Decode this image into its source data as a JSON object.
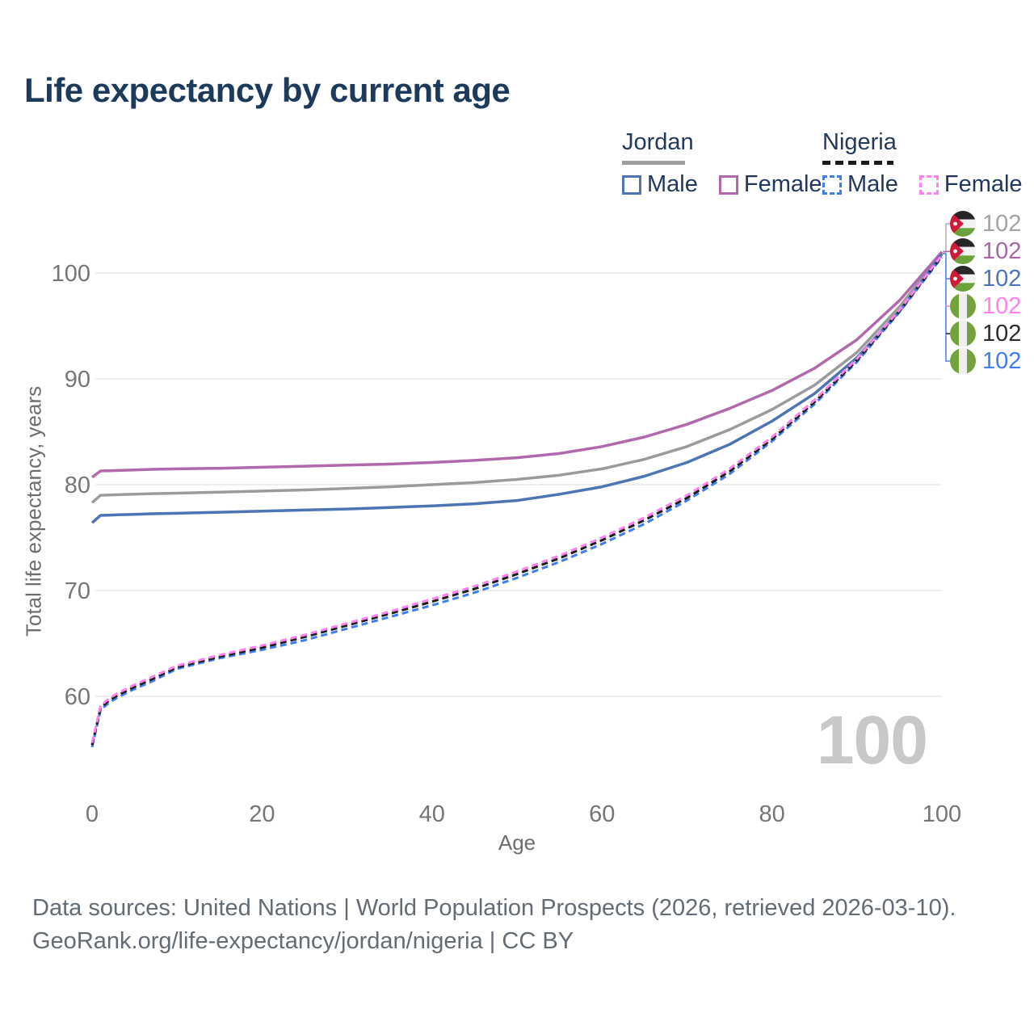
{
  "title": "Life expectancy by current age",
  "legend": {
    "jordan": {
      "country": "Jordan",
      "line_style": "solid",
      "underline_color": "#9e9e9e",
      "male_label": "Male",
      "female_label": "Female",
      "male_color": "#4d74b5",
      "female_color": "#b168ac"
    },
    "nigeria": {
      "country": "Nigeria",
      "line_style": "dashed",
      "underline_color": "#1a1a1a",
      "male_label": "Male",
      "female_label": "Female",
      "male_color": "#3d7ef2",
      "female_color": "#ff80ee"
    }
  },
  "chart_data": {
    "type": "line",
    "title": "Life expectancy by current age",
    "xlabel": "Age",
    "ylabel": "Total life expectancy, years",
    "x_ticks": [
      0,
      20,
      40,
      60,
      80,
      100
    ],
    "y_ticks": [
      60,
      70,
      80,
      90,
      100
    ],
    "xlim": [
      0,
      100
    ],
    "ylim": [
      54,
      103
    ],
    "grid": "horizontal",
    "legend_position": "top-right",
    "ages": [
      0,
      1,
      2,
      3,
      5,
      7,
      10,
      15,
      20,
      25,
      30,
      35,
      40,
      45,
      50,
      55,
      60,
      65,
      70,
      75,
      80,
      85,
      90,
      95,
      100
    ],
    "series": [
      {
        "name": "Jordan Total",
        "country": "Jordan",
        "sex": "Total",
        "style": "solid",
        "color": "#9b9b9b",
        "end_value": 102,
        "values": [
          78.3,
          79.0,
          79.02,
          79.05,
          79.1,
          79.15,
          79.2,
          79.3,
          79.4,
          79.5,
          79.65,
          79.8,
          80.0,
          80.2,
          80.5,
          80.9,
          81.5,
          82.4,
          83.6,
          85.2,
          87.1,
          89.4,
          92.5,
          96.8,
          101.9
        ]
      },
      {
        "name": "Jordan Female",
        "country": "Jordan",
        "sex": "Female",
        "style": "solid",
        "color": "#b168ac",
        "end_value": 102,
        "values": [
          80.7,
          81.3,
          81.32,
          81.34,
          81.4,
          81.45,
          81.5,
          81.55,
          81.65,
          81.75,
          81.85,
          81.95,
          82.1,
          82.3,
          82.55,
          82.95,
          83.6,
          84.5,
          85.7,
          87.2,
          88.9,
          91.0,
          93.7,
          97.4,
          102.0
        ]
      },
      {
        "name": "Jordan Male",
        "country": "Jordan",
        "sex": "Male",
        "style": "solid",
        "color": "#4d74b5",
        "end_value": 102,
        "values": [
          76.4,
          77.1,
          77.12,
          77.15,
          77.2,
          77.25,
          77.3,
          77.4,
          77.5,
          77.6,
          77.7,
          77.85,
          78.0,
          78.2,
          78.5,
          79.1,
          79.8,
          80.8,
          82.1,
          83.8,
          86.0,
          88.6,
          92.0,
          96.4,
          101.8
        ]
      },
      {
        "name": "Nigeria Male",
        "country": "Nigeria",
        "sex": "Male",
        "style": "dashed",
        "color": "#3d7ef2",
        "end_value": 102,
        "values": [
          55.2,
          58.7,
          59.4,
          59.9,
          60.7,
          61.4,
          62.6,
          63.6,
          64.4,
          65.3,
          66.4,
          67.5,
          68.6,
          69.8,
          71.2,
          72.7,
          74.4,
          76.3,
          78.5,
          81.0,
          84.1,
          87.6,
          91.6,
          96.3,
          101.5
        ]
      },
      {
        "name": "Nigeria Total",
        "country": "Nigeria",
        "sex": "Total",
        "style": "dashed",
        "color": "#1c1c1c",
        "end_value": 102,
        "values": [
          55.4,
          58.9,
          59.6,
          60.1,
          60.9,
          61.6,
          62.75,
          63.75,
          64.6,
          65.6,
          66.7,
          67.8,
          68.95,
          70.15,
          71.55,
          73.05,
          74.75,
          76.65,
          78.75,
          81.25,
          84.3,
          87.8,
          91.75,
          96.4,
          101.6
        ]
      },
      {
        "name": "Nigeria Female",
        "country": "Nigeria",
        "sex": "Female",
        "style": "dashed",
        "color": "#ff80ee",
        "end_value": 102,
        "values": [
          55.6,
          59.1,
          59.8,
          60.3,
          61.1,
          61.8,
          62.9,
          63.9,
          64.8,
          65.8,
          66.9,
          68.0,
          69.2,
          70.4,
          71.8,
          73.3,
          75.0,
          76.9,
          79.0,
          81.5,
          84.5,
          88.0,
          91.9,
          96.5,
          101.7
        ]
      }
    ]
  },
  "right_labels": {
    "rows": [
      {
        "icon": "jordan-flag-icon",
        "flag": "jordan",
        "value": "102",
        "color": "#a2a2a2"
      },
      {
        "icon": "jordan-flag-icon",
        "flag": "jordan",
        "value": "102",
        "color": "#a965a5"
      },
      {
        "icon": "jordan-flag-icon",
        "flag": "jordan",
        "value": "102",
        "color": "#4d74b5"
      },
      {
        "icon": "nigeria-flag-icon",
        "flag": "nigeria",
        "value": "102",
        "color": "#ff80ee"
      },
      {
        "icon": "nigeria-flag-icon",
        "flag": "nigeria",
        "value": "102",
        "color": "#2b2b2b"
      },
      {
        "icon": "nigeria-flag-icon",
        "flag": "nigeria",
        "value": "102",
        "color": "#3d7ef2"
      }
    ]
  },
  "watermark": "100",
  "footer": {
    "line1": "Data sources: United Nations | World Population Prospects (2026, retrieved 2026-03-10).",
    "line2": "GeoRank.org/life-expectancy/jordan/nigeria | CC BY"
  },
  "colors": {
    "title_text": "#1b3a5c",
    "axis_text": "#767676",
    "gridline": "#e9e9e9",
    "watermark": "#c8c8c8",
    "footer_text": "#636b75"
  }
}
